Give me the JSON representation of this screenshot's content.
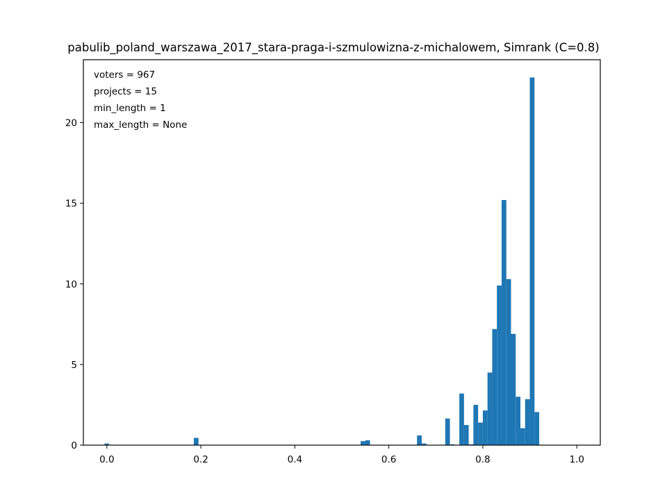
{
  "chart_data": {
    "type": "bar",
    "title": "pabulib_poland_warszawa_2017_stara-praga-i-szmulowizna-z-michalowem, Simrank (C=0.8)",
    "xlabel": "",
    "ylabel": "",
    "xlim": [
      -0.05,
      1.05
    ],
    "ylim": [
      0,
      23.9
    ],
    "xticks": [
      "0.0",
      "0.2",
      "0.4",
      "0.6",
      "0.8",
      "1.0"
    ],
    "yticks": [
      "0",
      "5",
      "10",
      "15",
      "20"
    ],
    "bar_color": "#1f77b4",
    "grid": false,
    "legend": "none",
    "annotations": [
      "voters = 967",
      "projects = 15",
      "min_length = 1",
      "max_length = None"
    ],
    "bin_width": 0.01,
    "bins": [
      {
        "x": 0.0,
        "value": 0.1
      },
      {
        "x": 0.19,
        "value": 0.45
      },
      {
        "x": 0.545,
        "value": 0.25
      },
      {
        "x": 0.555,
        "value": 0.3
      },
      {
        "x": 0.665,
        "value": 0.6
      },
      {
        "x": 0.675,
        "value": 0.1
      },
      {
        "x": 0.725,
        "value": 1.65
      },
      {
        "x": 0.735,
        "value": 0.05
      },
      {
        "x": 0.755,
        "value": 3.2
      },
      {
        "x": 0.765,
        "value": 1.25
      },
      {
        "x": 0.775,
        "value": 0.05
      },
      {
        "x": 0.785,
        "value": 2.5
      },
      {
        "x": 0.795,
        "value": 1.4
      },
      {
        "x": 0.805,
        "value": 2.15
      },
      {
        "x": 0.815,
        "value": 4.5
      },
      {
        "x": 0.825,
        "value": 7.2
      },
      {
        "x": 0.835,
        "value": 9.9
      },
      {
        "x": 0.845,
        "value": 15.2
      },
      {
        "x": 0.855,
        "value": 10.3
      },
      {
        "x": 0.865,
        "value": 6.9
      },
      {
        "x": 0.875,
        "value": 3.0
      },
      {
        "x": 0.885,
        "value": 1.05
      },
      {
        "x": 0.895,
        "value": 2.85
      },
      {
        "x": 0.905,
        "value": 22.8
      },
      {
        "x": 0.915,
        "value": 2.05
      }
    ]
  }
}
